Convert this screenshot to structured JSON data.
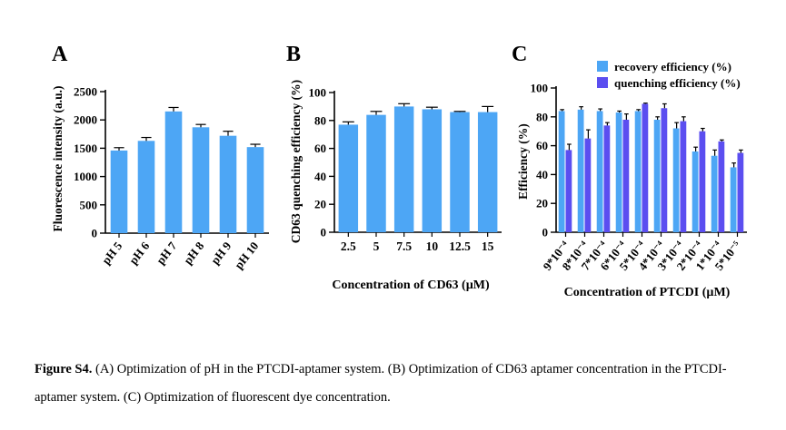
{
  "colors": {
    "primary": "#4da6f5",
    "secondary": "#5b4ef0"
  },
  "chart_data": [
    {
      "panel": "A",
      "type": "bar",
      "ylabel": "Fluorescence intensity (a.u.)",
      "categories": [
        "pH 5",
        "pH 6",
        "pH 7",
        "pH 8",
        "pH 9",
        "pH 10"
      ],
      "values": [
        1460,
        1630,
        2150,
        1870,
        1720,
        1520
      ],
      "errors": [
        50,
        60,
        70,
        50,
        80,
        50
      ],
      "ylim": [
        0,
        2500
      ],
      "yticks": [
        "0",
        "500",
        "1000",
        "1500",
        "2000",
        "2500"
      ]
    },
    {
      "panel": "B",
      "type": "bar",
      "ylabel": "CD63 quenching efficiency (%)",
      "xlabel": "Concentration of CD63 (µM)",
      "categories": [
        "2.5",
        "5",
        "7.5",
        "10",
        "12.5",
        "15"
      ],
      "values": [
        77,
        84,
        90,
        88,
        86,
        86
      ],
      "errors": [
        2,
        2.5,
        2,
        1.5,
        0.5,
        4
      ],
      "ylim": [
        0,
        100
      ],
      "yticks": [
        "0",
        "20",
        "40",
        "60",
        "80",
        "100"
      ]
    },
    {
      "panel": "C",
      "type": "bar",
      "ylabel": "Efficiency (%)",
      "xlabel": "Concentration of PTCDI (µM)",
      "categories": [
        "9*10⁻⁴",
        "8*10⁻⁴",
        "7*10⁻⁴",
        "6*10⁻⁴",
        "5*10⁻⁴",
        "4*10⁻⁴",
        "3*10⁻⁴",
        "2*10⁻⁴",
        "1*10⁻⁴",
        "5*10⁻⁵"
      ],
      "series": [
        {
          "name": "recovery efficiency (%)",
          "values": [
            84,
            85,
            84,
            83,
            84,
            78,
            72,
            56,
            53,
            45
          ],
          "errors": [
            1,
            2,
            1.5,
            1,
            1,
            2,
            4,
            3,
            4,
            3
          ]
        },
        {
          "name": "quenching efficiency (%)",
          "values": [
            57,
            65,
            74,
            78,
            89,
            86,
            77,
            70,
            63,
            55
          ],
          "errors": [
            4,
            6,
            2,
            4,
            0.5,
            3,
            3,
            2,
            1,
            2
          ]
        }
      ],
      "ylim": [
        0,
        100
      ],
      "yticks": [
        "0",
        "20",
        "40",
        "60",
        "80",
        "100"
      ],
      "legend": "top"
    }
  ],
  "caption": {
    "lead": "Figure S4.",
    "text": " (A) Optimization of pH in the PTCDI-aptamer system. (B) Optimization of CD63 aptamer concentration in the PTCDI-aptamer system. (C) Optimization of fluorescent dye concentration."
  }
}
